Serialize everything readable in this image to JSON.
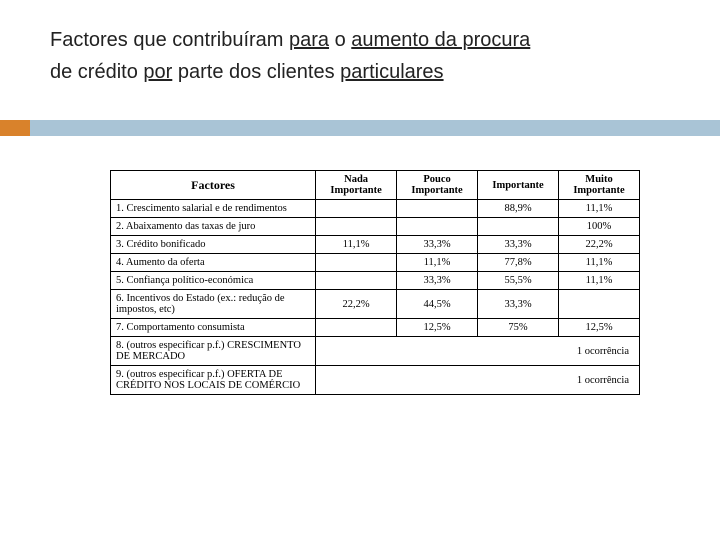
{
  "title": {
    "part1": "Factores que contribuíram ",
    "part2_u": "para",
    "part3": " o ",
    "part4_u": "aumento da procura",
    "line2a": "de crédito ",
    "line2b_u": "por",
    "line2c": " parte dos clientes ",
    "line2d_u": "particulares"
  },
  "table": {
    "headers": {
      "factores": "Factores",
      "c1": "Nada Importante",
      "c2": "Pouco Importante",
      "c3": "Importante",
      "c4": "Muito Importante"
    },
    "rows": [
      {
        "label": "1.  Crescimento salarial e de rendimentos",
        "v": [
          "",
          "",
          "88,9%",
          "11,1%"
        ]
      },
      {
        "label": "2.  Abaixamento das taxas de juro",
        "v": [
          "",
          "",
          "",
          "100%"
        ]
      },
      {
        "label": "3.  Crédito bonificado",
        "v": [
          "11,1%",
          "33,3%",
          "33,3%",
          "22,2%"
        ]
      },
      {
        "label": "4.  Aumento da oferta",
        "v": [
          "",
          "11,1%",
          "77,8%",
          "11,1%"
        ]
      },
      {
        "label": "5.  Confiança político-económica",
        "v": [
          "",
          "33,3%",
          "55,5%",
          "11,1%"
        ]
      },
      {
        "label": "6.  Incentivos do Estado (ex.: redução de impostos, etc)",
        "v": [
          "22,2%",
          "44,5%",
          "33,3%",
          ""
        ]
      },
      {
        "label": "7.  Comportamento consumista",
        "v": [
          "",
          "12,5%",
          "75%",
          "12,5%"
        ]
      }
    ],
    "merged": [
      {
        "label": "8.  (outros especificar p.f.) CRESCIMENTO DE MERCADO",
        "text": "1 ocorrência"
      },
      {
        "label": "9.  (outros especificar p.f.) OFERTA DE CRÉDITO NOS LOCAIS DE COMÉRCIO",
        "text": "1 ocorrência"
      }
    ]
  },
  "style": {
    "accent_bar_color": "#a9c4d6",
    "accent_orange_color": "#d9822b",
    "title_color": "#222222",
    "border_color": "#000000",
    "background": "#ffffff"
  }
}
